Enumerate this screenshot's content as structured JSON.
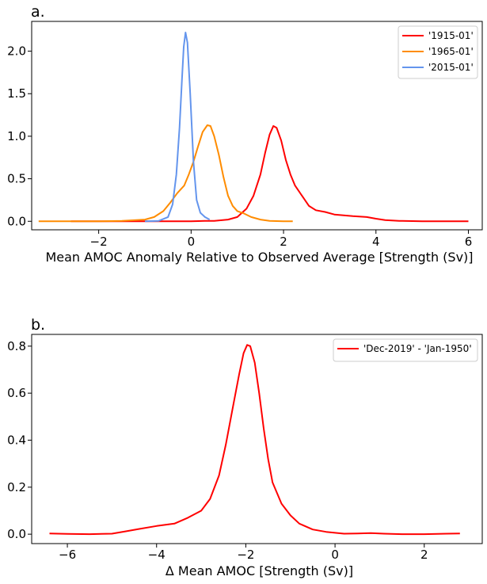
{
  "chart_data": [
    {
      "type": "line",
      "panel_label": "a.",
      "title": "",
      "xlabel": "Mean AMOC Anomaly Relative to Observed Average [Strength (Sv)]",
      "ylabel": "",
      "xlim": [
        -3.45,
        6.3
      ],
      "ylim": [
        -0.1,
        2.35
      ],
      "xticks": [
        -2,
        0,
        2,
        4,
        6
      ],
      "xtick_labels": [
        "−2",
        "0",
        "2",
        "4",
        "6"
      ],
      "yticks": [
        0.0,
        0.5,
        1.0,
        1.5,
        2.0
      ],
      "ytick_labels": [
        "0.0",
        "0.5",
        "1.0",
        "1.5",
        "2.0"
      ],
      "grid": false,
      "legend_position": "top-right",
      "series": [
        {
          "name": "'1915-01'",
          "color": "#ff0000",
          "points": [
            [
              -2.6,
              0.0
            ],
            [
              -1.0,
              0.0
            ],
            [
              -0.5,
              0.0
            ],
            [
              0.0,
              0.0
            ],
            [
              0.3,
              0.005
            ],
            [
              0.5,
              0.005
            ],
            [
              0.8,
              0.02
            ],
            [
              1.0,
              0.05
            ],
            [
              1.2,
              0.15
            ],
            [
              1.35,
              0.3
            ],
            [
              1.5,
              0.55
            ],
            [
              1.6,
              0.8
            ],
            [
              1.7,
              1.02
            ],
            [
              1.78,
              1.12
            ],
            [
              1.85,
              1.1
            ],
            [
              1.95,
              0.95
            ],
            [
              2.05,
              0.72
            ],
            [
              2.15,
              0.55
            ],
            [
              2.25,
              0.42
            ],
            [
              2.4,
              0.3
            ],
            [
              2.55,
              0.18
            ],
            [
              2.7,
              0.13
            ],
            [
              2.9,
              0.11
            ],
            [
              3.1,
              0.08
            ],
            [
              3.3,
              0.07
            ],
            [
              3.5,
              0.06
            ],
            [
              3.8,
              0.05
            ],
            [
              4.0,
              0.03
            ],
            [
              4.2,
              0.015
            ],
            [
              4.5,
              0.005
            ],
            [
              5.0,
              0.0
            ],
            [
              5.5,
              0.0
            ],
            [
              6.0,
              0.0
            ]
          ]
        },
        {
          "name": "'1965-01'",
          "color": "#ff8c00",
          "points": [
            [
              -3.3,
              0.0
            ],
            [
              -3.0,
              0.0
            ],
            [
              -2.5,
              0.0
            ],
            [
              -2.0,
              0.0
            ],
            [
              -1.5,
              0.005
            ],
            [
              -1.0,
              0.02
            ],
            [
              -0.8,
              0.05
            ],
            [
              -0.6,
              0.12
            ],
            [
              -0.45,
              0.22
            ],
            [
              -0.3,
              0.33
            ],
            [
              -0.15,
              0.42
            ],
            [
              -0.05,
              0.55
            ],
            [
              0.05,
              0.7
            ],
            [
              0.15,
              0.88
            ],
            [
              0.25,
              1.05
            ],
            [
              0.35,
              1.13
            ],
            [
              0.42,
              1.12
            ],
            [
              0.5,
              1.0
            ],
            [
              0.6,
              0.78
            ],
            [
              0.7,
              0.52
            ],
            [
              0.8,
              0.3
            ],
            [
              0.9,
              0.18
            ],
            [
              1.0,
              0.12
            ],
            [
              1.15,
              0.09
            ],
            [
              1.3,
              0.05
            ],
            [
              1.5,
              0.02
            ],
            [
              1.7,
              0.005
            ],
            [
              2.0,
              0.0
            ],
            [
              2.2,
              0.0
            ]
          ]
        },
        {
          "name": "'2015-01'",
          "color": "#6495ed",
          "points": [
            [
              -1.0,
              0.0
            ],
            [
              -0.7,
              0.005
            ],
            [
              -0.5,
              0.05
            ],
            [
              -0.4,
              0.2
            ],
            [
              -0.32,
              0.55
            ],
            [
              -0.25,
              1.1
            ],
            [
              -0.2,
              1.65
            ],
            [
              -0.16,
              2.05
            ],
            [
              -0.12,
              2.22
            ],
            [
              -0.08,
              2.1
            ],
            [
              -0.02,
              1.5
            ],
            [
              0.05,
              0.7
            ],
            [
              0.12,
              0.25
            ],
            [
              0.2,
              0.1
            ],
            [
              0.3,
              0.05
            ],
            [
              0.4,
              0.02
            ]
          ]
        }
      ]
    },
    {
      "type": "line",
      "panel_label": "b.",
      "title": "",
      "xlabel": "Δ Mean AMOC [Strength (Sv)]",
      "ylabel": "",
      "xlim": [
        -6.8,
        3.3
      ],
      "ylim": [
        -0.04,
        0.85
      ],
      "xticks": [
        -6,
        -4,
        -2,
        0,
        2
      ],
      "xtick_labels": [
        "−6",
        "−4",
        "−2",
        "0",
        "2"
      ],
      "yticks": [
        0.0,
        0.2,
        0.4,
        0.6,
        0.8
      ],
      "ytick_labels": [
        "0.0",
        "0.2",
        "0.4",
        "0.6",
        "0.8"
      ],
      "grid": false,
      "legend_position": "top-right",
      "series": [
        {
          "name": "'Dec-2019' - 'Jan-1950'",
          "color": "#ff0000",
          "points": [
            [
              -6.4,
              0.003
            ],
            [
              -6.0,
              0.001
            ],
            [
              -5.5,
              0.0
            ],
            [
              -5.0,
              0.002
            ],
            [
              -4.7,
              0.012
            ],
            [
              -4.4,
              0.022
            ],
            [
              -4.0,
              0.035
            ],
            [
              -3.6,
              0.045
            ],
            [
              -3.3,
              0.07
            ],
            [
              -3.0,
              0.1
            ],
            [
              -2.8,
              0.15
            ],
            [
              -2.6,
              0.25
            ],
            [
              -2.45,
              0.38
            ],
            [
              -2.3,
              0.53
            ],
            [
              -2.15,
              0.68
            ],
            [
              -2.05,
              0.77
            ],
            [
              -1.97,
              0.805
            ],
            [
              -1.9,
              0.8
            ],
            [
              -1.8,
              0.73
            ],
            [
              -1.7,
              0.6
            ],
            [
              -1.6,
              0.45
            ],
            [
              -1.5,
              0.32
            ],
            [
              -1.4,
              0.22
            ],
            [
              -1.2,
              0.13
            ],
            [
              -1.0,
              0.08
            ],
            [
              -0.8,
              0.045
            ],
            [
              -0.5,
              0.02
            ],
            [
              -0.2,
              0.01
            ],
            [
              0.2,
              0.002
            ],
            [
              0.5,
              0.003
            ],
            [
              0.8,
              0.005
            ],
            [
              1.1,
              0.002
            ],
            [
              1.5,
              0.0
            ],
            [
              2.0,
              0.0
            ],
            [
              2.5,
              0.002
            ],
            [
              2.8,
              0.003
            ]
          ]
        }
      ]
    }
  ]
}
